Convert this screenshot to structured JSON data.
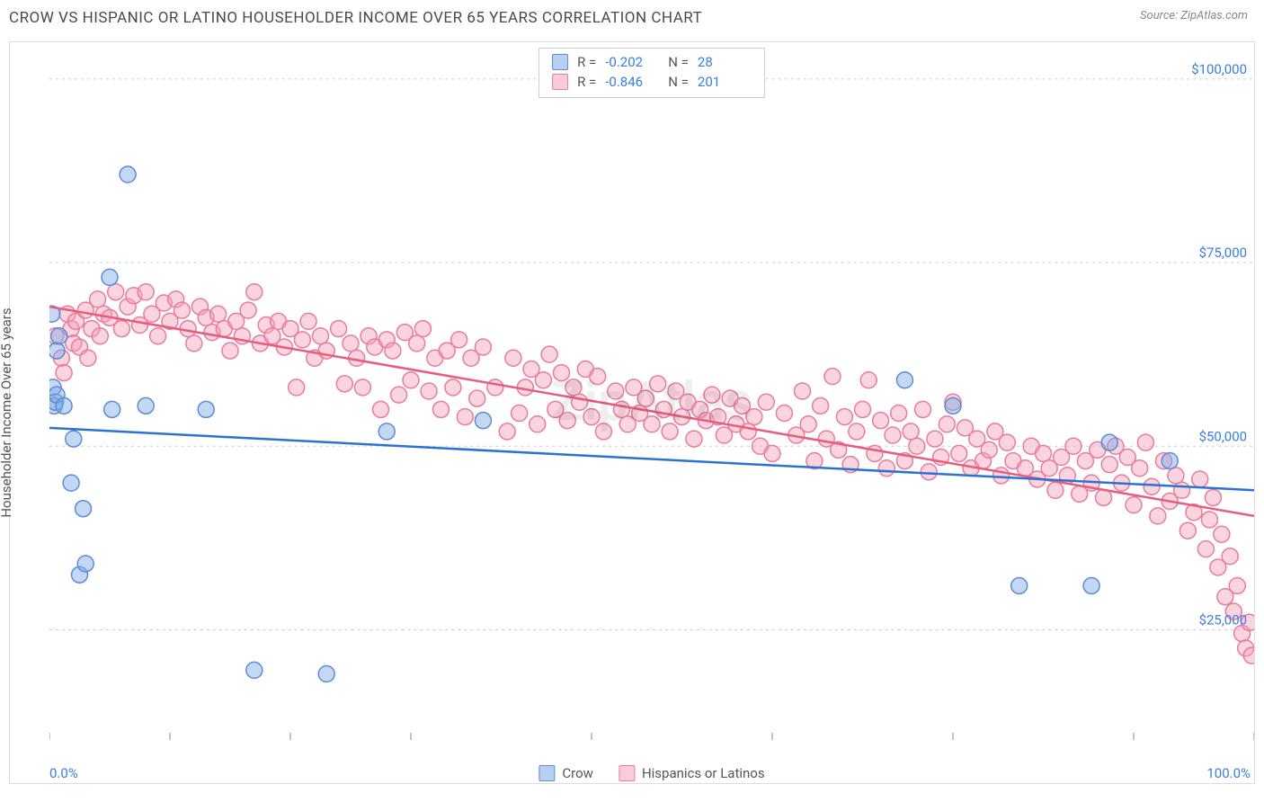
{
  "title": "CROW VS HISPANIC OR LATINO HOUSEHOLDER INCOME OVER 65 YEARS CORRELATION CHART",
  "source_label": "Source: ZipAtlas.com",
  "ylabel": "Householder Income Over 65 years",
  "watermark": "ZipAtlas",
  "chart": {
    "type": "scatter",
    "xlim": [
      0,
      100
    ],
    "ylim": [
      10000,
      105000
    ],
    "x_tick_positions": [
      0,
      10,
      20,
      30,
      45,
      60,
      75,
      90,
      100
    ],
    "x_axis_min_label": "0.0%",
    "x_axis_max_label": "100.0%",
    "y_ticks": [
      {
        "value": 25000,
        "label": "$25,000"
      },
      {
        "value": 50000,
        "label": "$50,000"
      },
      {
        "value": 75000,
        "label": "$75,000"
      },
      {
        "value": 100000,
        "label": "$100,000"
      }
    ],
    "grid_color": "#cccccc",
    "background_color": "#ffffff",
    "marker_radius": 9,
    "series": [
      {
        "name": "Crow",
        "color_fill": "rgba(124,168,230,0.45)",
        "color_stroke": "#5a8cd8",
        "trend_color": "#2b72d4",
        "R": "-0.202",
        "N": "28",
        "trend": {
          "x1": 0,
          "y1": 52500,
          "x2": 100,
          "y2": 44000
        },
        "points": [
          {
            "x": 0.2,
            "y": 68000
          },
          {
            "x": 0.3,
            "y": 58000
          },
          {
            "x": 0.4,
            "y": 55500
          },
          {
            "x": 0.5,
            "y": 56000
          },
          {
            "x": 0.6,
            "y": 57000
          },
          {
            "x": 0.6,
            "y": 63000
          },
          {
            "x": 0.8,
            "y": 65000
          },
          {
            "x": 1.2,
            "y": 55500
          },
          {
            "x": 1.8,
            "y": 45000
          },
          {
            "x": 2.0,
            "y": 51000
          },
          {
            "x": 2.5,
            "y": 32500
          },
          {
            "x": 2.8,
            "y": 41500
          },
          {
            "x": 3.0,
            "y": 34000
          },
          {
            "x": 5.0,
            "y": 73000
          },
          {
            "x": 5.2,
            "y": 55000
          },
          {
            "x": 6.5,
            "y": 87000
          },
          {
            "x": 8.0,
            "y": 55500
          },
          {
            "x": 13.0,
            "y": 55000
          },
          {
            "x": 17.0,
            "y": 19500
          },
          {
            "x": 23.0,
            "y": 19000
          },
          {
            "x": 28.0,
            "y": 52000
          },
          {
            "x": 36.0,
            "y": 53500
          },
          {
            "x": 71.0,
            "y": 59000
          },
          {
            "x": 75.0,
            "y": 55500
          },
          {
            "x": 80.5,
            "y": 31000
          },
          {
            "x": 86.5,
            "y": 31000
          },
          {
            "x": 88.0,
            "y": 50500
          },
          {
            "x": 93.0,
            "y": 48000
          }
        ]
      },
      {
        "name": "Hispanics or Latinos",
        "color_fill": "rgba(245,160,185,0.45)",
        "color_stroke": "#e87ba0",
        "trend_color": "#e85d7b",
        "R": "-0.846",
        "N": "201",
        "trend": {
          "x1": 0,
          "y1": 69000,
          "x2": 100,
          "y2": 40500
        },
        "points": [
          {
            "x": 0.5,
            "y": 65000
          },
          {
            "x": 1,
            "y": 62000
          },
          {
            "x": 1.2,
            "y": 60000
          },
          {
            "x": 1.5,
            "y": 68000
          },
          {
            "x": 1.8,
            "y": 66000
          },
          {
            "x": 2,
            "y": 64000
          },
          {
            "x": 2.2,
            "y": 67000
          },
          {
            "x": 2.5,
            "y": 63500
          },
          {
            "x": 3,
            "y": 68500
          },
          {
            "x": 3.2,
            "y": 62000
          },
          {
            "x": 3.5,
            "y": 66000
          },
          {
            "x": 4,
            "y": 70000
          },
          {
            "x": 4.2,
            "y": 65000
          },
          {
            "x": 4.5,
            "y": 68000
          },
          {
            "x": 5,
            "y": 67500
          },
          {
            "x": 5.5,
            "y": 71000
          },
          {
            "x": 6,
            "y": 66000
          },
          {
            "x": 6.5,
            "y": 69000
          },
          {
            "x": 7,
            "y": 70500
          },
          {
            "x": 7.5,
            "y": 66500
          },
          {
            "x": 8,
            "y": 71000
          },
          {
            "x": 8.5,
            "y": 68000
          },
          {
            "x": 9,
            "y": 65000
          },
          {
            "x": 9.5,
            "y": 69500
          },
          {
            "x": 10,
            "y": 67000
          },
          {
            "x": 10.5,
            "y": 70000
          },
          {
            "x": 11,
            "y": 68500
          },
          {
            "x": 11.5,
            "y": 66000
          },
          {
            "x": 12,
            "y": 64000
          },
          {
            "x": 12.5,
            "y": 69000
          },
          {
            "x": 13,
            "y": 67500
          },
          {
            "x": 13.5,
            "y": 65500
          },
          {
            "x": 14,
            "y": 68000
          },
          {
            "x": 14.5,
            "y": 66000
          },
          {
            "x": 15,
            "y": 63000
          },
          {
            "x": 15.5,
            "y": 67000
          },
          {
            "x": 16,
            "y": 65000
          },
          {
            "x": 16.5,
            "y": 68500
          },
          {
            "x": 17,
            "y": 71000
          },
          {
            "x": 17.5,
            "y": 64000
          },
          {
            "x": 18,
            "y": 66500
          },
          {
            "x": 18.5,
            "y": 65000
          },
          {
            "x": 19,
            "y": 67000
          },
          {
            "x": 19.5,
            "y": 63500
          },
          {
            "x": 20,
            "y": 66000
          },
          {
            "x": 20.5,
            "y": 58000
          },
          {
            "x": 21,
            "y": 64500
          },
          {
            "x": 21.5,
            "y": 67000
          },
          {
            "x": 22,
            "y": 62000
          },
          {
            "x": 22.5,
            "y": 65000
          },
          {
            "x": 23,
            "y": 63000
          },
          {
            "x": 24,
            "y": 66000
          },
          {
            "x": 24.5,
            "y": 58500
          },
          {
            "x": 25,
            "y": 64000
          },
          {
            "x": 25.5,
            "y": 62000
          },
          {
            "x": 26,
            "y": 58000
          },
          {
            "x": 26.5,
            "y": 65000
          },
          {
            "x": 27,
            "y": 63500
          },
          {
            "x": 27.5,
            "y": 55000
          },
          {
            "x": 28,
            "y": 64500
          },
          {
            "x": 28.5,
            "y": 63000
          },
          {
            "x": 29,
            "y": 57000
          },
          {
            "x": 29.5,
            "y": 65500
          },
          {
            "x": 30,
            "y": 59000
          },
          {
            "x": 30.5,
            "y": 64000
          },
          {
            "x": 31,
            "y": 66000
          },
          {
            "x": 31.5,
            "y": 57500
          },
          {
            "x": 32,
            "y": 62000
          },
          {
            "x": 32.5,
            "y": 55000
          },
          {
            "x": 33,
            "y": 63000
          },
          {
            "x": 33.5,
            "y": 58000
          },
          {
            "x": 34,
            "y": 64500
          },
          {
            "x": 34.5,
            "y": 54000
          },
          {
            "x": 35,
            "y": 62000
          },
          {
            "x": 35.5,
            "y": 56500
          },
          {
            "x": 36,
            "y": 63500
          },
          {
            "x": 37,
            "y": 58000
          },
          {
            "x": 38,
            "y": 52000
          },
          {
            "x": 38.5,
            "y": 62000
          },
          {
            "x": 39,
            "y": 54500
          },
          {
            "x": 39.5,
            "y": 58000
          },
          {
            "x": 40,
            "y": 60500
          },
          {
            "x": 40.5,
            "y": 53000
          },
          {
            "x": 41,
            "y": 59000
          },
          {
            "x": 41.5,
            "y": 62500
          },
          {
            "x": 42,
            "y": 55000
          },
          {
            "x": 42.5,
            "y": 60000
          },
          {
            "x": 43,
            "y": 53500
          },
          {
            "x": 43.5,
            "y": 58000
          },
          {
            "x": 44,
            "y": 56000
          },
          {
            "x": 44.5,
            "y": 60500
          },
          {
            "x": 45,
            "y": 54000
          },
          {
            "x": 45.5,
            "y": 59500
          },
          {
            "x": 46,
            "y": 52000
          },
          {
            "x": 47,
            "y": 57500
          },
          {
            "x": 47.5,
            "y": 55000
          },
          {
            "x": 48,
            "y": 53000
          },
          {
            "x": 48.5,
            "y": 58000
          },
          {
            "x": 49,
            "y": 54500
          },
          {
            "x": 49.5,
            "y": 56500
          },
          {
            "x": 50,
            "y": 53000
          },
          {
            "x": 50.5,
            "y": 58500
          },
          {
            "x": 51,
            "y": 55000
          },
          {
            "x": 51.5,
            "y": 52000
          },
          {
            "x": 52,
            "y": 57500
          },
          {
            "x": 52.5,
            "y": 54000
          },
          {
            "x": 53,
            "y": 56000
          },
          {
            "x": 53.5,
            "y": 51000
          },
          {
            "x": 54,
            "y": 55000
          },
          {
            "x": 54.5,
            "y": 53500
          },
          {
            "x": 55,
            "y": 57000
          },
          {
            "x": 55.5,
            "y": 54000
          },
          {
            "x": 56,
            "y": 51500
          },
          {
            "x": 56.5,
            "y": 56500
          },
          {
            "x": 57,
            "y": 53000
          },
          {
            "x": 57.5,
            "y": 55500
          },
          {
            "x": 58,
            "y": 52000
          },
          {
            "x": 58.5,
            "y": 54000
          },
          {
            "x": 59,
            "y": 50000
          },
          {
            "x": 59.5,
            "y": 56000
          },
          {
            "x": 60,
            "y": 49000
          },
          {
            "x": 61,
            "y": 54500
          },
          {
            "x": 62,
            "y": 51500
          },
          {
            "x": 62.5,
            "y": 57500
          },
          {
            "x": 63,
            "y": 53000
          },
          {
            "x": 63.5,
            "y": 48000
          },
          {
            "x": 64,
            "y": 55500
          },
          {
            "x": 64.5,
            "y": 51000
          },
          {
            "x": 65,
            "y": 59500
          },
          {
            "x": 65.5,
            "y": 49500
          },
          {
            "x": 66,
            "y": 54000
          },
          {
            "x": 66.5,
            "y": 47500
          },
          {
            "x": 67,
            "y": 52000
          },
          {
            "x": 67.5,
            "y": 55000
          },
          {
            "x": 68,
            "y": 59000
          },
          {
            "x": 68.5,
            "y": 49000
          },
          {
            "x": 69,
            "y": 53500
          },
          {
            "x": 69.5,
            "y": 47000
          },
          {
            "x": 70,
            "y": 51500
          },
          {
            "x": 70.5,
            "y": 54500
          },
          {
            "x": 71,
            "y": 48000
          },
          {
            "x": 71.5,
            "y": 52000
          },
          {
            "x": 72,
            "y": 50000
          },
          {
            "x": 72.5,
            "y": 55000
          },
          {
            "x": 73,
            "y": 46500
          },
          {
            "x": 73.5,
            "y": 51000
          },
          {
            "x": 74,
            "y": 48500
          },
          {
            "x": 74.5,
            "y": 53000
          },
          {
            "x": 75,
            "y": 56000
          },
          {
            "x": 75.5,
            "y": 49000
          },
          {
            "x": 76,
            "y": 52500
          },
          {
            "x": 76.5,
            "y": 47000
          },
          {
            "x": 77,
            "y": 51000
          },
          {
            "x": 77.5,
            "y": 48000
          },
          {
            "x": 78,
            "y": 49500
          },
          {
            "x": 78.5,
            "y": 52000
          },
          {
            "x": 79,
            "y": 46000
          },
          {
            "x": 79.5,
            "y": 50500
          },
          {
            "x": 80,
            "y": 48000
          },
          {
            "x": 81,
            "y": 47000
          },
          {
            "x": 81.5,
            "y": 50000
          },
          {
            "x": 82,
            "y": 45500
          },
          {
            "x": 82.5,
            "y": 49000
          },
          {
            "x": 83,
            "y": 47000
          },
          {
            "x": 83.5,
            "y": 44000
          },
          {
            "x": 84,
            "y": 48500
          },
          {
            "x": 84.5,
            "y": 46000
          },
          {
            "x": 85,
            "y": 50000
          },
          {
            "x": 85.5,
            "y": 43500
          },
          {
            "x": 86,
            "y": 48000
          },
          {
            "x": 86.5,
            "y": 45000
          },
          {
            "x": 87,
            "y": 49500
          },
          {
            "x": 87.5,
            "y": 43000
          },
          {
            "x": 88,
            "y": 47500
          },
          {
            "x": 88.5,
            "y": 50000
          },
          {
            "x": 89,
            "y": 45000
          },
          {
            "x": 89.5,
            "y": 48500
          },
          {
            "x": 90,
            "y": 42000
          },
          {
            "x": 90.5,
            "y": 47000
          },
          {
            "x": 91,
            "y": 50500
          },
          {
            "x": 91.5,
            "y": 44500
          },
          {
            "x": 92,
            "y": 40500
          },
          {
            "x": 92.5,
            "y": 48000
          },
          {
            "x": 93,
            "y": 42500
          },
          {
            "x": 93.5,
            "y": 46000
          },
          {
            "x": 94,
            "y": 44000
          },
          {
            "x": 94.5,
            "y": 38500
          },
          {
            "x": 95,
            "y": 41000
          },
          {
            "x": 95.5,
            "y": 45500
          },
          {
            "x": 96,
            "y": 36000
          },
          {
            "x": 96.3,
            "y": 40000
          },
          {
            "x": 96.6,
            "y": 43000
          },
          {
            "x": 97,
            "y": 33500
          },
          {
            "x": 97.3,
            "y": 38000
          },
          {
            "x": 97.6,
            "y": 29500
          },
          {
            "x": 98,
            "y": 35000
          },
          {
            "x": 98.3,
            "y": 27500
          },
          {
            "x": 98.6,
            "y": 31000
          },
          {
            "x": 99,
            "y": 24500
          },
          {
            "x": 99.3,
            "y": 22500
          },
          {
            "x": 99.6,
            "y": 26000
          },
          {
            "x": 99.8,
            "y": 21500
          }
        ]
      }
    ]
  },
  "legend": {
    "items": [
      {
        "label": "Crow",
        "swatch": "blue"
      },
      {
        "label": "Hispanics or Latinos",
        "swatch": "pink"
      }
    ]
  },
  "stats_box": {
    "rows": [
      {
        "swatch": "blue",
        "r_label": "R =",
        "r_value": "-0.202",
        "n_label": "N =",
        "n_value": "28"
      },
      {
        "swatch": "pink",
        "r_label": "R =",
        "r_value": "-0.846",
        "n_label": "N =",
        "n_value": "201"
      }
    ]
  }
}
